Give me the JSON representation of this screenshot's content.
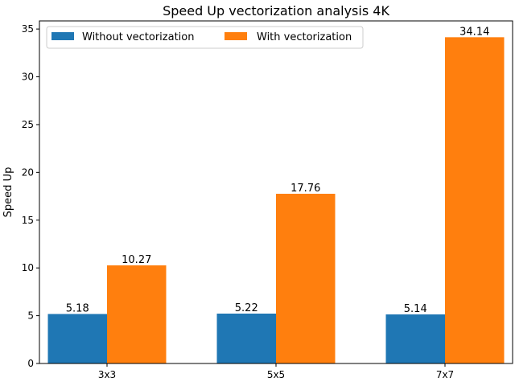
{
  "chart_data": {
    "type": "bar",
    "title": "Speed Up vectorization analysis 4K",
    "xlabel": "",
    "ylabel": "Speed Up",
    "categories": [
      "3x3",
      "5x5",
      "7x7"
    ],
    "series": [
      {
        "name": "Without vectorization",
        "values": [
          5.18,
          5.22,
          5.14
        ],
        "labels": [
          "5.18",
          "5.22",
          "5.14"
        ],
        "color": "#1f77b4"
      },
      {
        "name": "With vectorization",
        "values": [
          10.27,
          17.76,
          34.14
        ],
        "labels": [
          "10.27",
          "17.76",
          "34.14"
        ],
        "color": "#ff7f0e"
      }
    ],
    "ylim": [
      0,
      35.85
    ],
    "yticks": [
      0,
      5,
      10,
      15,
      20,
      25,
      30,
      35
    ],
    "grid": false,
    "legend_position": "top-left"
  }
}
